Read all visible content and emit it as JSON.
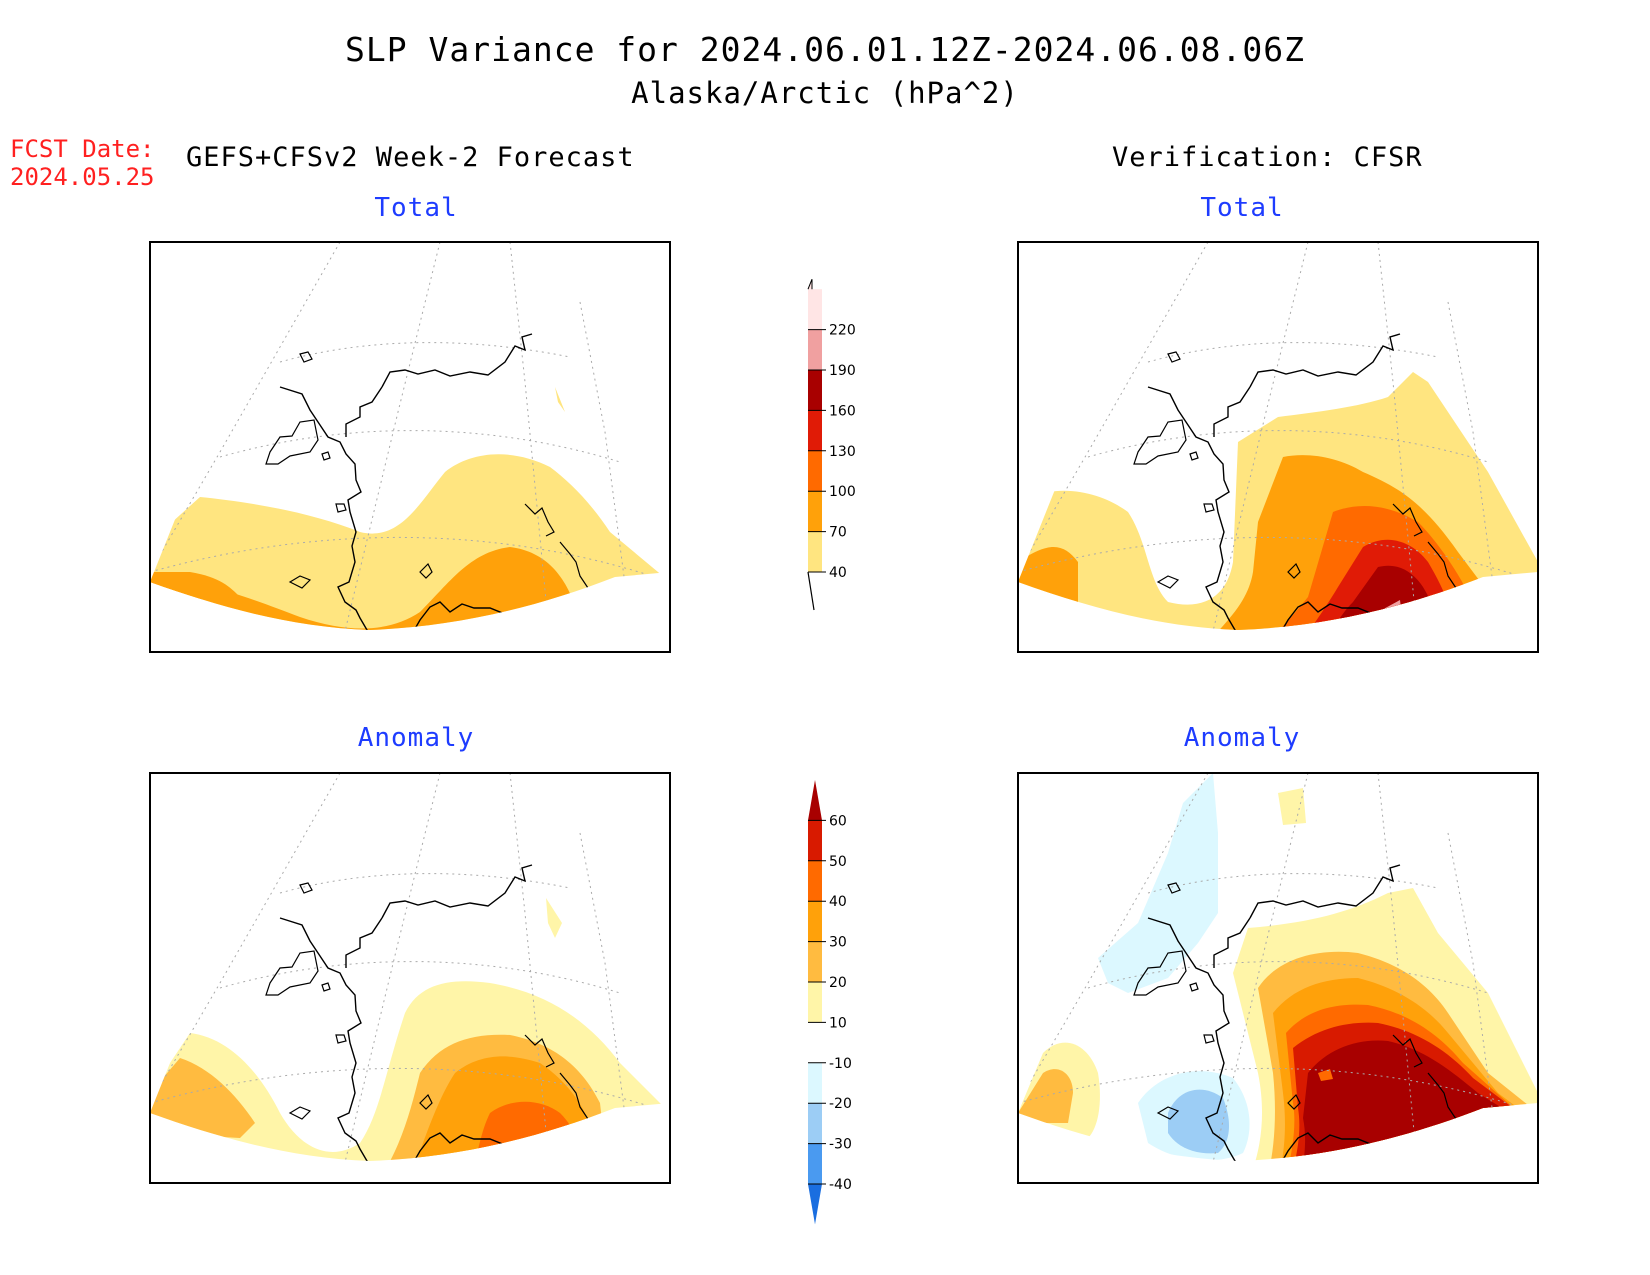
{
  "title": {
    "line1": "SLP Variance for 2024.06.01.12Z-2024.06.08.06Z",
    "line2": "Alaska/Arctic (hPa^2)"
  },
  "fcst": {
    "label": "FCST Date:",
    "date": "2024.05.25"
  },
  "left_header": "GEFS+CFSv2 Week-2 Forecast",
  "right_header": "Verification: CFSR",
  "panels": {
    "top_left": {
      "subtitle": "Total"
    },
    "top_right": {
      "subtitle": "Total"
    },
    "bottom_left": {
      "subtitle": "Anomaly"
    },
    "bottom_right": {
      "subtitle": "Anomaly"
    }
  },
  "colorbars": {
    "total": {
      "levels": [
        "40",
        "70",
        "100",
        "130",
        "160",
        "190",
        "220"
      ],
      "colors": [
        "#ffe580",
        "#ffa10a",
        "#ff6a00",
        "#e01b06",
        "#a80000",
        "#f0a0a0",
        "#ffe5e5"
      ]
    },
    "anomaly": {
      "levels": [
        "-40",
        "-30",
        "-20",
        "-10",
        "10",
        "20",
        "30",
        "40",
        "50",
        "60"
      ],
      "colors": [
        "#1a6ee0",
        "#4a9af0",
        "#9ccdf5",
        "#dcf8ff",
        "#ffffff",
        "#fff5a8",
        "#ffbb40",
        "#ffa10a",
        "#ff6a00",
        "#d81a00",
        "#a80000"
      ]
    }
  },
  "colors": {
    "title_text": "#000000",
    "fcst_text": "#ff2020",
    "subtitle_text": "#1e3cff",
    "coastline": "#000000",
    "graticule": "#aaaaaa"
  }
}
